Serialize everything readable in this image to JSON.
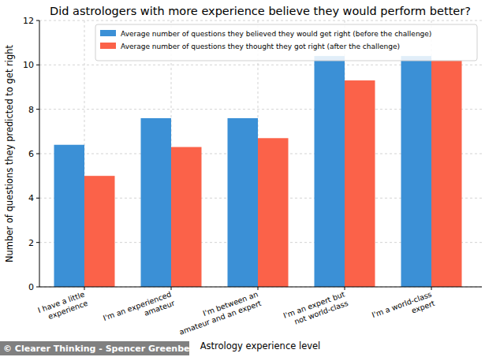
{
  "chart_data": {
    "type": "bar",
    "title": "Did astrologers with more experience believe they would perform better?",
    "x_label": "Astrology experience level",
    "y_label": "Number of questions they predicted to get right",
    "annotations": [
      "© Clearer Thinking - Spencer Greenberg"
    ],
    "categories": [
      "I have a little\nexperience",
      "I'm an experienced\namateur",
      "I'm between an\namateur and an expert",
      "I'm an expert but\nnot world-class",
      "I'm a world-class\nexpert"
    ],
    "series": [
      {
        "name": "Average number of questions they believed they would get right (before the challenge)",
        "color": "#3b90d6",
        "values": [
          6.4,
          7.6,
          7.6,
          10.4,
          10.4
        ]
      },
      {
        "name": "Average number of questions they thought they got right (after the challenge)",
        "color": "#fb6249",
        "values": [
          5.0,
          6.3,
          6.7,
          9.3,
          10.2
        ]
      }
    ],
    "ylim": [
      0,
      12
    ],
    "yticks": [
      0,
      2,
      4,
      6,
      8,
      10,
      12
    ],
    "grid": true,
    "legend": "upper right"
  }
}
